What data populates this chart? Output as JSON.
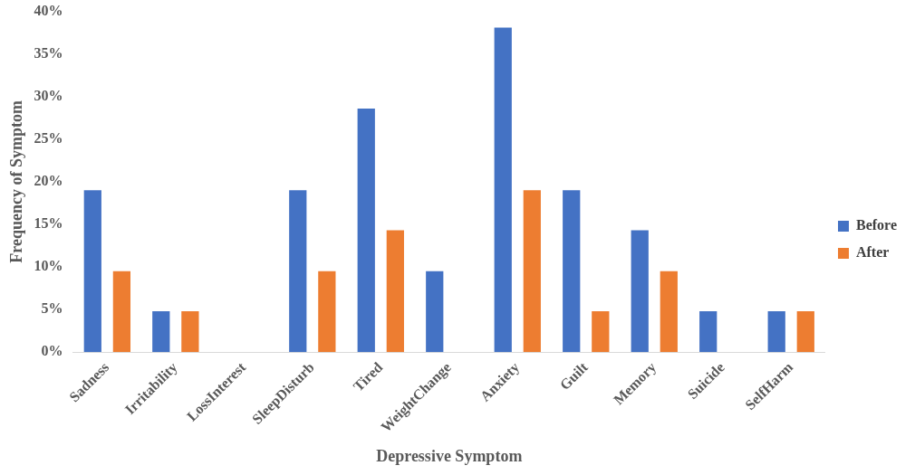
{
  "chart_data": {
    "type": "bar",
    "xlabel": "Depressive Symptom",
    "ylabel": "Frequency of Symptom",
    "categories": [
      "Sadness",
      "Irritability",
      "LossInterest",
      "SleepDisturb",
      "Tired",
      "WeightChange",
      "Anxiety",
      "Guilt",
      "Memory",
      "Suicide",
      "SelfHarm"
    ],
    "series": [
      {
        "name": "Before",
        "color": "#4472c4",
        "values": [
          19,
          4.8,
          0,
          19,
          28.6,
          9.5,
          38.1,
          19,
          14.3,
          4.8,
          4.8
        ]
      },
      {
        "name": "After",
        "color": "#ed7d31",
        "values": [
          9.5,
          4.8,
          0,
          9.5,
          14.3,
          0,
          19,
          4.8,
          9.5,
          0,
          4.8
        ]
      }
    ],
    "ylim": [
      0,
      40
    ],
    "yticks": [
      {
        "value": 0,
        "label": "0%"
      },
      {
        "value": 5,
        "label": "5%"
      },
      {
        "value": 10,
        "label": "10%"
      },
      {
        "value": 15,
        "label": "15%"
      },
      {
        "value": 20,
        "label": "20%"
      },
      {
        "value": 25,
        "label": "25%"
      },
      {
        "value": 30,
        "label": "30%"
      },
      {
        "value": 35,
        "label": "35%"
      },
      {
        "value": 40,
        "label": "40%"
      }
    ],
    "grid": false,
    "legend": "right"
  }
}
